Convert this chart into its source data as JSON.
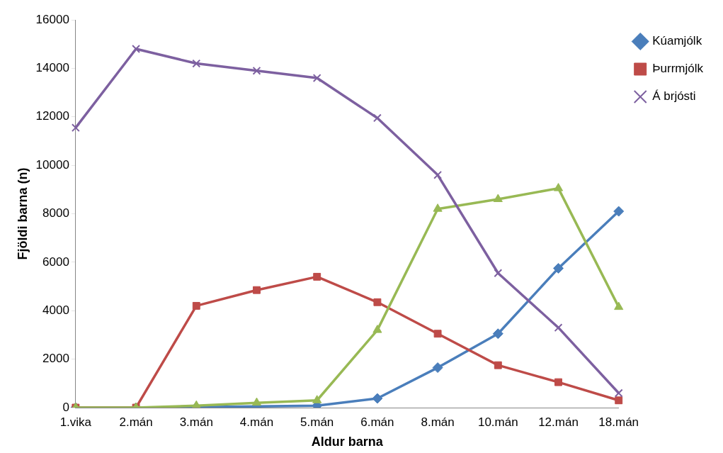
{
  "chart_data": {
    "type": "line",
    "xlabel": "Aldur barna",
    "ylabel": "Fjöldi barna (n)",
    "categories": [
      "1.vika",
      "2.mán",
      "3.mán",
      "4.mán",
      "5.mán",
      "6.mán",
      "8.mán",
      "10.mán",
      "12.mán",
      "18.mán"
    ],
    "series": [
      {
        "name": "Kúamjólk",
        "color": "#4a7ebb",
        "marker": "diamond",
        "values": [
          0,
          0,
          20,
          50,
          80,
          380,
          1650,
          3050,
          5750,
          8100
        ]
      },
      {
        "name": "Þurrmjólk",
        "color": "#be4b48",
        "marker": "square",
        "values": [
          0,
          0,
          4200,
          4850,
          5400,
          4350,
          3050,
          1750,
          1050,
          300
        ]
      },
      {
        "color": "#98b954",
        "marker": "triangle",
        "values": [
          0,
          0,
          80,
          200,
          300,
          3200,
          8200,
          8600,
          9050,
          4150
        ]
      },
      {
        "name": "Á brjósti",
        "color": "#7d60a0",
        "marker": "cross",
        "values": [
          11550,
          14800,
          14200,
          13900,
          13600,
          11950,
          9600,
          5550,
          3300,
          600
        ]
      }
    ],
    "ylim": [
      0,
      16000
    ],
    "yticks": [
      0,
      2000,
      4000,
      6000,
      8000,
      10000,
      12000,
      14000,
      16000
    ],
    "grid": false,
    "legend": "right",
    "line_style": "solid"
  }
}
